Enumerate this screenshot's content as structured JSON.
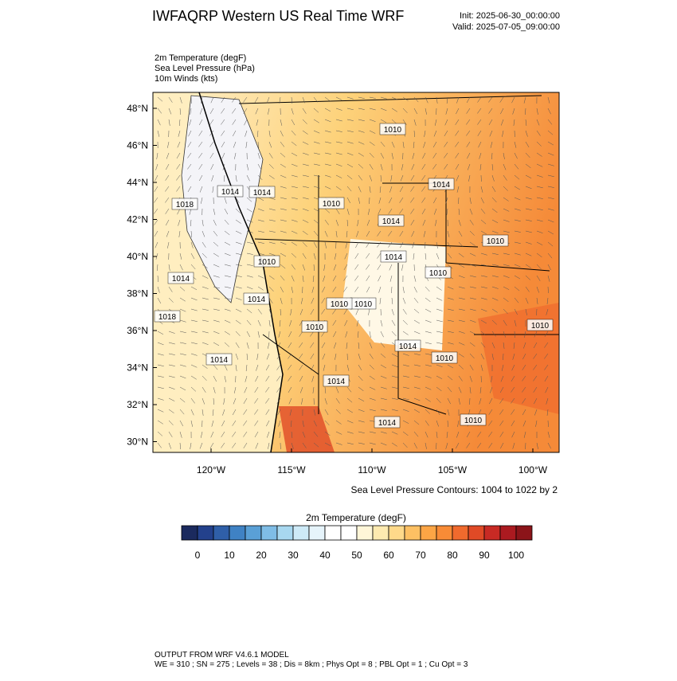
{
  "header": {
    "title": "IWFAQRP Western US Real Time WRF",
    "init": "Init: 2025-06-30_00:00:00",
    "valid": "Valid: 2025-07-05_09:00:00"
  },
  "fields": [
    "2m Temperature   (degF)",
    "Sea Level Pressure   (hPa)",
    "10m Winds   (kts)"
  ],
  "map": {
    "lat_labels": [
      "48°N",
      "46°N",
      "44°N",
      "42°N",
      "40°N",
      "38°N",
      "36°N",
      "34°N",
      "32°N",
      "30°N"
    ],
    "lon_labels": [
      "120°W",
      "115°W",
      "110°W",
      "105°W",
      "100°W"
    ],
    "contour_labels": [
      "1010",
      "1014",
      "1010",
      "1018",
      "1010",
      "1014",
      "1014",
      "1010",
      "1010",
      "1014",
      "1014",
      "1018",
      "1014",
      "1014",
      "1010",
      "1010",
      "1014",
      "1010",
      "1014",
      "1014",
      "1010",
      "1014",
      "1010",
      "1010"
    ],
    "contour_info": "Sea Level Pressure Contours: 1004 to 1022 by 2"
  },
  "colorbar": {
    "title": "2m Temperature  (degF)",
    "labels": [
      "0",
      "10",
      "20",
      "30",
      "40",
      "50",
      "60",
      "70",
      "80",
      "90",
      "100"
    ],
    "colors": [
      "#1b2a5e",
      "#23418c",
      "#2f5fa8",
      "#3f82c4",
      "#5aa0d6",
      "#7fbde6",
      "#a8d8f0",
      "#cdeaf7",
      "#e6f4fb",
      "#ffffff",
      "#ffffff",
      "#fff6d8",
      "#feeab0",
      "#fed98a",
      "#fdc063",
      "#fca545",
      "#f88b36",
      "#f06a2d",
      "#e04a26",
      "#c82a24",
      "#ab1a20",
      "#8b1419"
    ]
  },
  "footer": [
    "OUTPUT FROM WRF V4.6.1 MODEL",
    "WE = 310 ; SN = 275 ; Levels = 38 ; Dis = 8km ; Phys Opt = 8 ; PBL Opt = 1 ; Cu Opt = 3"
  ]
}
